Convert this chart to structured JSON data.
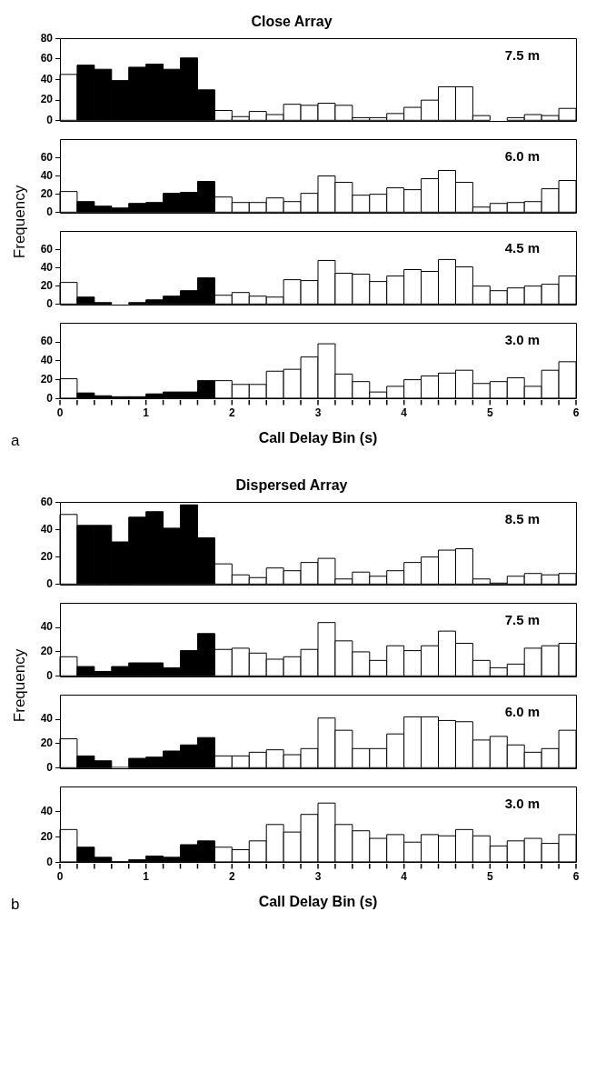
{
  "chart_data": [
    {
      "type": "histogram",
      "title": "Close Array",
      "annotations": [
        "7.5 m"
      ],
      "bins": [
        0,
        0.2,
        0.4,
        0.6,
        0.8,
        1,
        1.2,
        1.4,
        1.6,
        1.8,
        2,
        2.2,
        2.4,
        2.6,
        2.8,
        3,
        3.2,
        3.4,
        3.6,
        3.8,
        4,
        4.2,
        4.4,
        4.6,
        4.8,
        5,
        5.2,
        5.4,
        5.6,
        5.8,
        6
      ],
      "xlim": [
        0,
        6
      ],
      "ylim": [
        0,
        80
      ],
      "yticks": [
        0,
        20,
        40,
        60,
        80
      ],
      "tick_labels": "y",
      "colors": [
        "#ffffff",
        "#000000",
        "#000000",
        "#000000",
        "#000000",
        "#000000",
        "#000000",
        "#000000",
        "#000000",
        "#ffffff",
        "#ffffff",
        "#ffffff",
        "#ffffff",
        "#ffffff",
        "#ffffff",
        "#ffffff",
        "#ffffff",
        "#ffffff",
        "#ffffff",
        "#ffffff",
        "#ffffff",
        "#ffffff",
        "#ffffff",
        "#ffffff",
        "#ffffff",
        "#ffffff",
        "#ffffff",
        "#ffffff",
        "#ffffff",
        "#ffffff"
      ],
      "values": [
        45,
        54,
        50,
        39,
        52,
        55,
        50,
        61,
        30,
        10,
        4,
        9,
        6,
        16,
        15,
        17,
        15,
        3,
        3,
        7,
        13,
        20,
        33,
        33,
        5,
        0,
        3,
        6,
        5,
        12
      ]
    },
    {
      "type": "histogram",
      "ylabel": "Frequency",
      "annotations": [
        "6.0 m"
      ],
      "bins": [
        0,
        0.2,
        0.4,
        0.6,
        0.8,
        1,
        1.2,
        1.4,
        1.6,
        1.8,
        2,
        2.2,
        2.4,
        2.6,
        2.8,
        3,
        3.2,
        3.4,
        3.6,
        3.8,
        4,
        4.2,
        4.4,
        4.6,
        4.8,
        5,
        5.2,
        5.4,
        5.6,
        5.8,
        6
      ],
      "xlim": [
        0,
        6
      ],
      "ylim": [
        0,
        80
      ],
      "yticks": [
        0,
        20,
        40,
        60
      ],
      "tick_labels": "y",
      "colors": [
        "#ffffff",
        "#000000",
        "#000000",
        "#000000",
        "#000000",
        "#000000",
        "#000000",
        "#000000",
        "#000000",
        "#ffffff",
        "#ffffff",
        "#ffffff",
        "#ffffff",
        "#ffffff",
        "#ffffff",
        "#ffffff",
        "#ffffff",
        "#ffffff",
        "#ffffff",
        "#ffffff",
        "#ffffff",
        "#ffffff",
        "#ffffff",
        "#ffffff",
        "#ffffff",
        "#ffffff",
        "#ffffff",
        "#ffffff",
        "#ffffff",
        "#ffffff"
      ],
      "values": [
        23,
        12,
        7,
        5,
        10,
        11,
        21,
        22,
        34,
        17,
        11,
        11,
        16,
        12,
        21,
        40,
        33,
        19,
        20,
        27,
        25,
        37,
        46,
        33,
        6,
        10,
        11,
        12,
        26,
        35
      ]
    },
    {
      "type": "histogram",
      "annotations": [
        "4.5 m"
      ],
      "bins": [
        0,
        0.2,
        0.4,
        0.6,
        0.8,
        1,
        1.2,
        1.4,
        1.6,
        1.8,
        2,
        2.2,
        2.4,
        2.6,
        2.8,
        3,
        3.2,
        3.4,
        3.6,
        3.8,
        4,
        4.2,
        4.4,
        4.6,
        4.8,
        5,
        5.2,
        5.4,
        5.6,
        5.8,
        6
      ],
      "xlim": [
        0,
        6
      ],
      "ylim": [
        0,
        80
      ],
      "yticks": [
        0,
        20,
        40,
        60
      ],
      "tick_labels": "y",
      "colors": [
        "#ffffff",
        "#000000",
        "#000000",
        "#000000",
        "#000000",
        "#000000",
        "#000000",
        "#000000",
        "#000000",
        "#ffffff",
        "#ffffff",
        "#ffffff",
        "#ffffff",
        "#ffffff",
        "#ffffff",
        "#ffffff",
        "#ffffff",
        "#ffffff",
        "#ffffff",
        "#ffffff",
        "#ffffff",
        "#ffffff",
        "#ffffff",
        "#ffffff",
        "#ffffff",
        "#ffffff",
        "#ffffff",
        "#ffffff",
        "#ffffff",
        "#ffffff"
      ],
      "values": [
        24,
        8,
        2,
        0,
        2,
        5,
        9,
        15,
        29,
        10,
        13,
        9,
        8,
        27,
        26,
        48,
        34,
        33,
        25,
        31,
        38,
        36,
        49,
        41,
        20,
        15,
        18,
        20,
        22,
        31
      ]
    },
    {
      "type": "histogram",
      "xlabel": "Call Delay Bin (s)",
      "annotations": [
        "3.0 m",
        "a"
      ],
      "bins": [
        0,
        0.2,
        0.4,
        0.6,
        0.8,
        1,
        1.2,
        1.4,
        1.6,
        1.8,
        2,
        2.2,
        2.4,
        2.6,
        2.8,
        3,
        3.2,
        3.4,
        3.6,
        3.8,
        4,
        4.2,
        4.4,
        4.6,
        4.8,
        5,
        5.2,
        5.4,
        5.6,
        5.8,
        6
      ],
      "xlim": [
        0,
        6
      ],
      "ylim": [
        0,
        80
      ],
      "yticks": [
        0,
        20,
        40,
        60
      ],
      "xticks": [
        0,
        {
          "value": 0.2,
          "label": null
        },
        {
          "value": 0.4,
          "label": null
        },
        {
          "value": 0.6,
          "label": null
        },
        {
          "value": 0.8,
          "label": null
        },
        1,
        {
          "value": 1.2,
          "label": null
        },
        {
          "value": 1.4,
          "label": null
        },
        {
          "value": 1.6,
          "label": null
        },
        {
          "value": 1.8,
          "label": null
        },
        2,
        {
          "value": 2.2,
          "label": null
        },
        {
          "value": 2.4,
          "label": null
        },
        {
          "value": 2.6,
          "label": null
        },
        {
          "value": 2.8,
          "label": null
        },
        3,
        {
          "value": 3.2,
          "label": null
        },
        {
          "value": 3.4,
          "label": null
        },
        {
          "value": 3.6,
          "label": null
        },
        {
          "value": 3.8,
          "label": null
        },
        4,
        {
          "value": 4.2,
          "label": null
        },
        {
          "value": 4.4,
          "label": null
        },
        {
          "value": 4.6,
          "label": null
        },
        {
          "value": 4.8,
          "label": null
        },
        5,
        {
          "value": 5.2,
          "label": null
        },
        {
          "value": 5.4,
          "label": null
        },
        {
          "value": 5.6,
          "label": null
        },
        {
          "value": 5.8,
          "label": null
        },
        6
      ],
      "colors": [
        "#ffffff",
        "#000000",
        "#000000",
        "#000000",
        "#000000",
        "#000000",
        "#000000",
        "#000000",
        "#000000",
        "#ffffff",
        "#ffffff",
        "#ffffff",
        "#ffffff",
        "#ffffff",
        "#ffffff",
        "#ffffff",
        "#ffffff",
        "#ffffff",
        "#ffffff",
        "#ffffff",
        "#ffffff",
        "#ffffff",
        "#ffffff",
        "#ffffff",
        "#ffffff",
        "#ffffff",
        "#ffffff",
        "#ffffff",
        "#ffffff",
        "#ffffff"
      ],
      "values": [
        21,
        6,
        3,
        2,
        2,
        5,
        7,
        7,
        19,
        19,
        15,
        15,
        29,
        31,
        44,
        58,
        26,
        18,
        7,
        13,
        20,
        24,
        27,
        30,
        16,
        18,
        22,
        13,
        30,
        39
      ]
    },
    {
      "type": "histogram",
      "title": "Dispersed Array",
      "annotations": [
        "8.5 m"
      ],
      "bins": [
        0,
        0.2,
        0.4,
        0.6,
        0.8,
        1,
        1.2,
        1.4,
        1.6,
        1.8,
        2,
        2.2,
        2.4,
        2.6,
        2.8,
        3,
        3.2,
        3.4,
        3.6,
        3.8,
        4,
        4.2,
        4.4,
        4.6,
        4.8,
        5,
        5.2,
        5.4,
        5.6,
        5.8,
        6
      ],
      "xlim": [
        0,
        6
      ],
      "ylim": [
        0,
        60
      ],
      "yticks": [
        0,
        20,
        40,
        60
      ],
      "tick_labels": "y",
      "colors": [
        "#ffffff",
        "#000000",
        "#000000",
        "#000000",
        "#000000",
        "#000000",
        "#000000",
        "#000000",
        "#000000",
        "#ffffff",
        "#ffffff",
        "#ffffff",
        "#ffffff",
        "#ffffff",
        "#ffffff",
        "#ffffff",
        "#ffffff",
        "#ffffff",
        "#ffffff",
        "#ffffff",
        "#ffffff",
        "#ffffff",
        "#ffffff",
        "#ffffff",
        "#ffffff",
        "#ffffff",
        "#ffffff",
        "#ffffff",
        "#ffffff",
        "#ffffff"
      ],
      "values": [
        51,
        43,
        43,
        31,
        49,
        53,
        41,
        58,
        34,
        15,
        7,
        5,
        12,
        10,
        16,
        19,
        4,
        9,
        6,
        10,
        16,
        20,
        25,
        26,
        4,
        1,
        6,
        8,
        7,
        8
      ]
    },
    {
      "type": "histogram",
      "ylabel": "Frequency",
      "annotations": [
        "7.5 m"
      ],
      "bins": [
        0,
        0.2,
        0.4,
        0.6,
        0.8,
        1,
        1.2,
        1.4,
        1.6,
        1.8,
        2,
        2.2,
        2.4,
        2.6,
        2.8,
        3,
        3.2,
        3.4,
        3.6,
        3.8,
        4,
        4.2,
        4.4,
        4.6,
        4.8,
        5,
        5.2,
        5.4,
        5.6,
        5.8,
        6
      ],
      "xlim": [
        0,
        6
      ],
      "ylim": [
        0,
        60
      ],
      "yticks": [
        0,
        20,
        40
      ],
      "tick_labels": "y",
      "colors": [
        "#ffffff",
        "#000000",
        "#000000",
        "#000000",
        "#000000",
        "#000000",
        "#000000",
        "#000000",
        "#000000",
        "#ffffff",
        "#ffffff",
        "#ffffff",
        "#ffffff",
        "#ffffff",
        "#ffffff",
        "#ffffff",
        "#ffffff",
        "#ffffff",
        "#ffffff",
        "#ffffff",
        "#ffffff",
        "#ffffff",
        "#ffffff",
        "#ffffff",
        "#ffffff",
        "#ffffff",
        "#ffffff",
        "#ffffff",
        "#ffffff",
        "#ffffff"
      ],
      "values": [
        16,
        8,
        4,
        8,
        11,
        11,
        7,
        21,
        35,
        22,
        23,
        19,
        14,
        16,
        22,
        44,
        29,
        20,
        13,
        25,
        21,
        25,
        37,
        27,
        13,
        7,
        10,
        23,
        25,
        27
      ]
    },
    {
      "type": "histogram",
      "annotations": [
        "6.0 m"
      ],
      "bins": [
        0,
        0.2,
        0.4,
        0.6,
        0.8,
        1,
        1.2,
        1.4,
        1.6,
        1.8,
        2,
        2.2,
        2.4,
        2.6,
        2.8,
        3,
        3.2,
        3.4,
        3.6,
        3.8,
        4,
        4.2,
        4.4,
        4.6,
        4.8,
        5,
        5.2,
        5.4,
        5.6,
        5.8,
        6
      ],
      "xlim": [
        0,
        6
      ],
      "ylim": [
        0,
        60
      ],
      "yticks": [
        0,
        20,
        40
      ],
      "tick_labels": "y",
      "colors": [
        "#ffffff",
        "#000000",
        "#000000",
        "#000000",
        "#000000",
        "#000000",
        "#000000",
        "#000000",
        "#000000",
        "#ffffff",
        "#ffffff",
        "#ffffff",
        "#ffffff",
        "#ffffff",
        "#ffffff",
        "#ffffff",
        "#ffffff",
        "#ffffff",
        "#ffffff",
        "#ffffff",
        "#ffffff",
        "#ffffff",
        "#ffffff",
        "#ffffff",
        "#ffffff",
        "#ffffff",
        "#ffffff",
        "#ffffff",
        "#ffffff",
        "#ffffff"
      ],
      "values": [
        24,
        10,
        6,
        1,
        8,
        9,
        14,
        19,
        25,
        10,
        10,
        13,
        15,
        11,
        16,
        41,
        31,
        16,
        16,
        28,
        42,
        42,
        39,
        38,
        23,
        26,
        19,
        13,
        16,
        31
      ]
    },
    {
      "type": "histogram",
      "xlabel": "Call Delay Bin (s)",
      "annotations": [
        "3.0 m",
        "b"
      ],
      "bins": [
        0,
        0.2,
        0.4,
        0.6,
        0.8,
        1,
        1.2,
        1.4,
        1.6,
        1.8,
        2,
        2.2,
        2.4,
        2.6,
        2.8,
        3,
        3.2,
        3.4,
        3.6,
        3.8,
        4,
        4.2,
        4.4,
        4.6,
        4.8,
        5,
        5.2,
        5.4,
        5.6,
        5.8,
        6
      ],
      "xlim": [
        0,
        6
      ],
      "ylim": [
        0,
        60
      ],
      "yticks": [
        0,
        20,
        40
      ],
      "xticks": [
        0,
        {
          "value": 0.2,
          "label": null
        },
        {
          "value": 0.4,
          "label": null
        },
        {
          "value": 0.6,
          "label": null
        },
        {
          "value": 0.8,
          "label": null
        },
        1,
        {
          "value": 1.2,
          "label": null
        },
        {
          "value": 1.4,
          "label": null
        },
        {
          "value": 1.6,
          "label": null
        },
        {
          "value": 1.8,
          "label": null
        },
        2,
        {
          "value": 2.2,
          "label": null
        },
        {
          "value": 2.4,
          "label": null
        },
        {
          "value": 2.6,
          "label": null
        },
        {
          "value": 2.8,
          "label": null
        },
        3,
        {
          "value": 3.2,
          "label": null
        },
        {
          "value": 3.4,
          "label": null
        },
        {
          "value": 3.6,
          "label": null
        },
        {
          "value": 3.8,
          "label": null
        },
        4,
        {
          "value": 4.2,
          "label": null
        },
        {
          "value": 4.4,
          "label": null
        },
        {
          "value": 4.6,
          "label": null
        },
        {
          "value": 4.8,
          "label": null
        },
        5,
        {
          "value": 5.2,
          "label": null
        },
        {
          "value": 5.4,
          "label": null
        },
        {
          "value": 5.6,
          "label": null
        },
        {
          "value": 5.8,
          "label": null
        },
        6
      ],
      "colors": [
        "#ffffff",
        "#000000",
        "#000000",
        "#000000",
        "#000000",
        "#000000",
        "#000000",
        "#000000",
        "#000000",
        "#ffffff",
        "#ffffff",
        "#ffffff",
        "#ffffff",
        "#ffffff",
        "#ffffff",
        "#ffffff",
        "#ffffff",
        "#ffffff",
        "#ffffff",
        "#ffffff",
        "#ffffff",
        "#ffffff",
        "#ffffff",
        "#ffffff",
        "#ffffff",
        "#ffffff",
        "#ffffff",
        "#ffffff",
        "#ffffff",
        "#ffffff"
      ],
      "values": [
        26,
        12,
        4,
        1,
        2,
        5,
        4,
        14,
        17,
        12,
        10,
        17,
        30,
        24,
        38,
        47,
        30,
        25,
        19,
        22,
        16,
        22,
        21,
        26,
        21,
        13,
        17,
        19,
        15,
        22
      ]
    }
  ]
}
